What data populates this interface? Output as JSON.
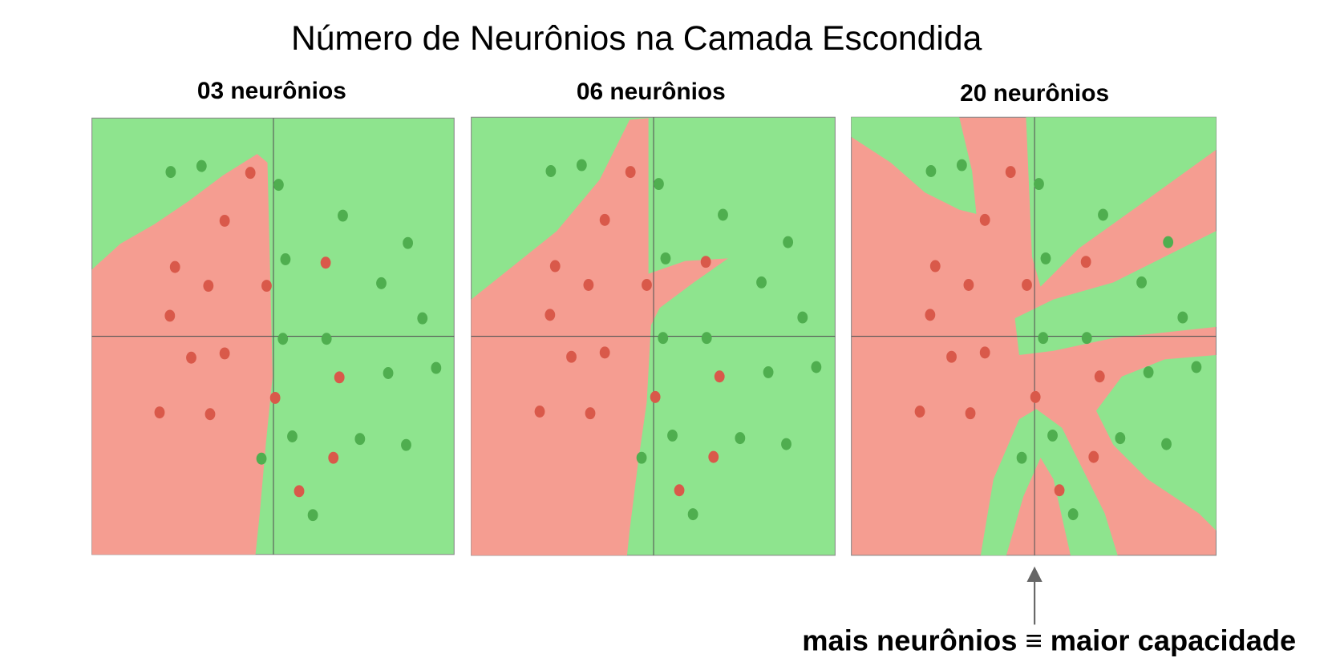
{
  "title": "Número de Neurônios na Camada Escondida",
  "panels": [
    {
      "title": "03 neurônios"
    },
    {
      "title": "06 neurônios"
    },
    {
      "title": "20 neurônios"
    }
  ],
  "annotation": "mais neurônios ≡ maior capacidade"
}
